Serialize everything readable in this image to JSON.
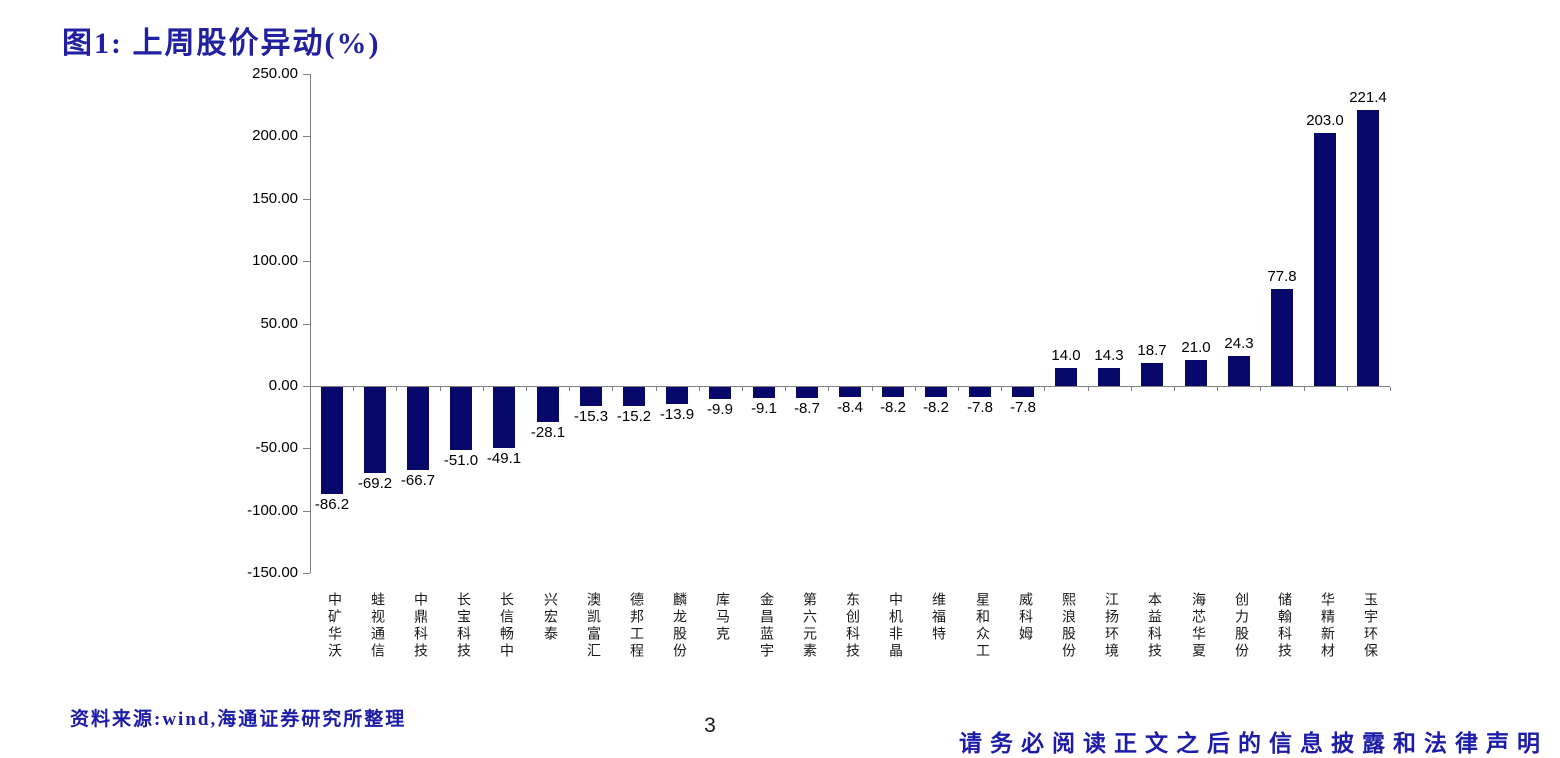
{
  "page": {
    "title": "图1: 上周股价异动(%)",
    "source_note": "资料来源:wind,海通证券研究所整理",
    "page_number": "3",
    "disclaimer": "请务必阅读正文之后的信息披露和法律声明"
  },
  "colors": {
    "title_blue": "#2020a0",
    "footer_blue": "#1c1ca8",
    "bar_navy": "#08086a",
    "axis_gray": "#808080",
    "text_black": "#000000"
  },
  "chart_data": {
    "type": "bar",
    "title": "上周股价异动(%)",
    "categories": [
      "中矿华沃",
      "蛙视通信",
      "中鼎科技",
      "长宝科技",
      "长信畅中",
      "兴宏泰",
      "澳凯富汇",
      "德邦工程",
      "麟龙股份",
      "库马克",
      "金昌蓝宇",
      "第六元素",
      "东创科技",
      "中机非晶",
      "维福特",
      "星和众工",
      "威科姆",
      "熙浪股份",
      "江扬环境",
      "本益科技",
      "海芯华夏",
      "创力股份",
      "储翰科技",
      "华精新材",
      "玉宇环保"
    ],
    "values": [
      -86.2,
      -69.2,
      -66.7,
      -51.0,
      -49.1,
      -28.1,
      -15.3,
      -15.2,
      -13.9,
      -9.9,
      -9.1,
      -8.7,
      -8.4,
      -8.2,
      -8.2,
      -7.8,
      -7.8,
      14.0,
      14.3,
      18.7,
      21.0,
      24.3,
      77.8,
      203.0,
      221.4
    ],
    "ylim": [
      -150,
      250
    ],
    "ytick_step": 50,
    "ytick_decimals": 2,
    "value_label_decimals": 1,
    "data_labels": true,
    "grid": false,
    "legend": "none",
    "bar_color": "#08086a",
    "axis_color": "#808080",
    "label_color": "#000000"
  }
}
